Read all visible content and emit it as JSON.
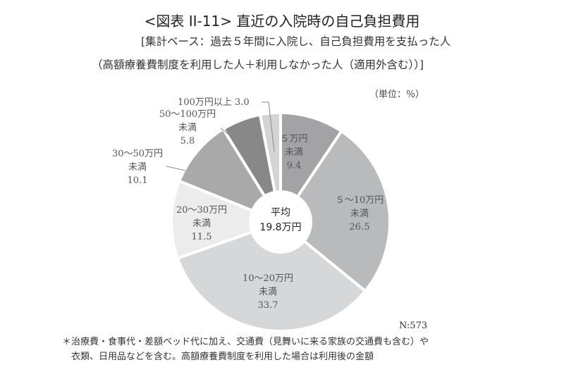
{
  "header": {
    "title": "<図表 II-11> 直近の入院時の自己負担費用",
    "subtitle_line1": "[集計ベース：過去５年間に入院し、自己負担費用を支払った人",
    "subtitle_line2": "（高額療養費制度を利用した人＋利用しなかった人（適用外含む））]",
    "unit": "（単位：％）"
  },
  "center": {
    "line1": "平均",
    "line2": "19.8万円"
  },
  "sample_size": "N:573",
  "footnote": {
    "line1": "＊治療費・食事代・差額ベッド代に加え、交通費（見舞いに来る家族の交通費も含む）や",
    "line2": "　衣類、日用品などを含む。高額療養費制度を利用した場合は利用後の金額"
  },
  "labels": [
    {
      "l1": "５万円",
      "l2": "未満",
      "l3": "9.4"
    },
    {
      "l1": "５～10万円",
      "l2": "未満",
      "l3": "26.5"
    },
    {
      "l1": "10～20万円",
      "l2": "未満",
      "l3": "33.7"
    },
    {
      "l1": "20～30万円",
      "l2": "未満",
      "l3": "11.5"
    },
    {
      "l1": "30～50万円",
      "l2": "未満",
      "l3": "10.1"
    },
    {
      "l1": "50～100万円",
      "l2": "未満",
      "l3": "5.8"
    },
    {
      "l1": "100万円以上 3.0"
    }
  ],
  "chart_data": {
    "type": "pie",
    "variant": "donut",
    "title": "<図表 II-11> 直近の入院時の自己負担費用",
    "subtitle": "[集計ベース：過去５年間に入院し、自己負担費用を支払った人（高額療養費制度を利用した人＋利用しなかった人（適用外含む））]",
    "unit": "%",
    "start_angle": "12 o'clock, clockwise",
    "categories": [
      "5万円未満",
      "5～10万円未満",
      "10～20万円未満",
      "20～30万円未満",
      "30～50万円未満",
      "50～100万円未満",
      "100万円以上"
    ],
    "values": [
      9.4,
      26.5,
      33.7,
      11.5,
      10.1,
      5.8,
      3.0
    ],
    "colors": [
      "#a3a3a5",
      "#b9babc",
      "#d6d7d8",
      "#ececec",
      "#a9a9a9",
      "#888889",
      "#d4d4d5"
    ],
    "center_annotation": "平均 19.8万円",
    "n": 573,
    "footnote": "＊治療費・食事代・差額ベッド代に加え、交通費（見舞いに来る家族の交通費も含む）や衣類、日用品などを含む。高額療養費制度を利用した場合は利用後の金額"
  }
}
